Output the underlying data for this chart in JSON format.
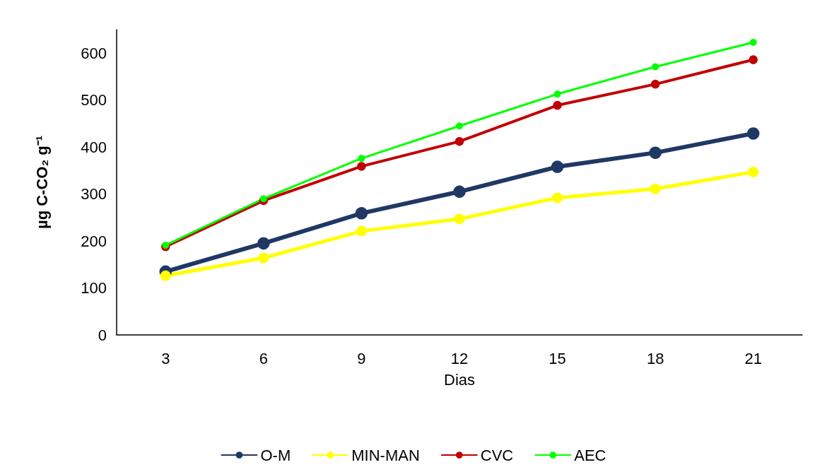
{
  "chart_data": {
    "type": "line",
    "xlabel": "Dias",
    "ylabel": "µg C-CO₂ g⁻¹",
    "categories": [
      "3",
      "6",
      "9",
      "12",
      "15",
      "18",
      "21"
    ],
    "series": [
      {
        "name": "O-M",
        "color": "#1f3864",
        "values": [
          135,
          195,
          259,
          305,
          358,
          388,
          429
        ]
      },
      {
        "name": "MIN-MAN",
        "color": "#ffff00",
        "values": [
          126,
          164,
          221,
          247,
          292,
          311,
          347
        ]
      },
      {
        "name": "CVC",
        "color": "#c00000",
        "values": [
          188,
          286,
          359,
          412,
          489,
          534,
          586
        ]
      },
      {
        "name": "AEC",
        "color": "#00ff00",
        "values": [
          191,
          290,
          376,
          445,
          513,
          571,
          623
        ]
      }
    ],
    "ylim": [
      0,
      650
    ],
    "yticks": [
      0,
      100,
      200,
      300,
      400,
      500,
      600
    ],
    "grid": false,
    "legend": "bottom",
    "marker": "circle",
    "line_style": "solid"
  }
}
